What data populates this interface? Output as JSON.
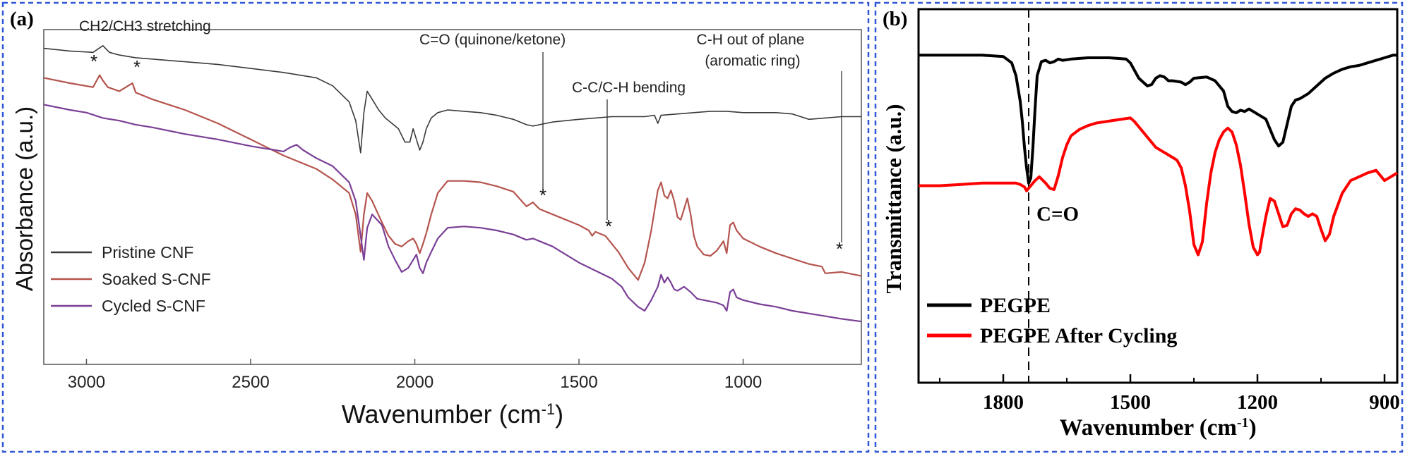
{
  "colors": {
    "frame_border": "#2f57d6",
    "pristine": "#3a3a3a",
    "soaked": "#b5544e",
    "cycled": "#7a3f96",
    "pegpe": "#000000",
    "pegpe_after": "#ff0000"
  },
  "panel_a": {
    "label": "(a)",
    "xlabel": "Wavenumber (cm",
    "xlabel_sup": "-1",
    "xlabel_close": ")",
    "ylabel": "Absorbance (a.u.)",
    "annotations": {
      "ch": "CH2/CH3 stretching",
      "co": "C=O (quinone/ketone)",
      "cc": "C-C/C-H bending",
      "cho_1": "C-H out of plane",
      "cho_2": "(aromatic ring)",
      "star": "*"
    }
  },
  "panel_b": {
    "label": "(b)",
    "xlabel": "Wavenumber (cm",
    "xlabel_sup": "-1",
    "xlabel_close": ")",
    "ylabel": "Transmittance (a.u.)",
    "annotations": {
      "co": "C=O"
    }
  },
  "chart_data": [
    {
      "type": "line",
      "panel": "a",
      "xlabel": "Wavenumber (cm-1)",
      "ylabel": "Absorbance (a.u.)",
      "xlim": [
        3130,
        640
      ],
      "x_reversed": true,
      "xticks": [
        3000,
        2500,
        2000,
        1500,
        1000
      ],
      "yticks_labeled": false,
      "legend_position": "bottom-left",
      "series": [
        {
          "name": "Pristine CNF",
          "x": [
            3130,
            3050,
            2980,
            2950,
            2930,
            2900,
            2850,
            2800,
            2700,
            2600,
            2500,
            2400,
            2300,
            2250,
            2200,
            2180,
            2165,
            2155,
            2145,
            2130,
            2110,
            2090,
            2070,
            2050,
            2030,
            2015,
            2005,
            1995,
            1985,
            1975,
            1965,
            1950,
            1930,
            1900,
            1850,
            1800,
            1750,
            1700,
            1660,
            1640,
            1620,
            1580,
            1540,
            1500,
            1450,
            1400,
            1350,
            1300,
            1270,
            1260,
            1250,
            1200,
            1150,
            1100,
            1050,
            1000,
            950,
            900,
            850,
            800,
            750,
            700,
            640
          ],
          "y": [
            9.2,
            9.1,
            9.05,
            9.3,
            9.05,
            8.95,
            8.85,
            8.8,
            8.7,
            8.6,
            8.45,
            8.3,
            8.1,
            7.8,
            7.2,
            6.5,
            5.3,
            6.8,
            7.6,
            7.3,
            6.9,
            6.6,
            6.4,
            6.2,
            5.7,
            5.7,
            6.2,
            5.8,
            5.4,
            5.7,
            6.2,
            6.6,
            6.8,
            6.9,
            6.85,
            6.8,
            6.7,
            6.55,
            6.35,
            6.3,
            6.35,
            6.45,
            6.5,
            6.55,
            6.6,
            6.65,
            6.65,
            6.65,
            6.7,
            6.4,
            6.7,
            6.75,
            6.8,
            6.85,
            6.85,
            6.8,
            6.8,
            6.8,
            6.75,
            6.55,
            6.6,
            6.65,
            6.65
          ]
        },
        {
          "name": "Soaked S-CNF",
          "x": [
            3130,
            3050,
            2980,
            2960,
            2950,
            2935,
            2900,
            2860,
            2850,
            2820,
            2800,
            2700,
            2600,
            2500,
            2400,
            2300,
            2250,
            2200,
            2180,
            2165,
            2155,
            2145,
            2130,
            2100,
            2080,
            2060,
            2040,
            2020,
            2005,
            1995,
            1985,
            1975,
            1965,
            1950,
            1930,
            1900,
            1850,
            1800,
            1750,
            1700,
            1660,
            1640,
            1620,
            1580,
            1540,
            1500,
            1470,
            1460,
            1450,
            1420,
            1380,
            1350,
            1320,
            1300,
            1280,
            1260,
            1250,
            1240,
            1230,
            1220,
            1210,
            1200,
            1190,
            1180,
            1170,
            1160,
            1150,
            1140,
            1120,
            1100,
            1080,
            1060,
            1050,
            1040,
            1030,
            1020,
            1000,
            950,
            900,
            850,
            800,
            760,
            750,
            700,
            640
          ],
          "y": [
            8.1,
            7.9,
            7.75,
            8.2,
            8.0,
            7.75,
            7.6,
            7.9,
            7.55,
            7.4,
            7.3,
            6.9,
            6.4,
            5.8,
            5.2,
            4.7,
            4.3,
            3.8,
            3.0,
            1.6,
            3.0,
            3.8,
            3.5,
            2.7,
            2.2,
            1.9,
            1.8,
            2.0,
            2.1,
            1.9,
            1.55,
            1.9,
            2.3,
            3.0,
            3.8,
            4.25,
            4.25,
            4.2,
            4.05,
            3.85,
            3.3,
            3.45,
            3.2,
            3.0,
            2.8,
            2.6,
            2.4,
            2.2,
            2.35,
            2.2,
            1.6,
            1.0,
            0.55,
            1.2,
            2.4,
            3.9,
            4.2,
            3.7,
            3.6,
            3.9,
            3.5,
            2.9,
            2.8,
            3.2,
            3.6,
            3.0,
            2.2,
            1.8,
            1.5,
            1.45,
            1.65,
            2.0,
            1.55,
            2.6,
            2.7,
            2.4,
            2.1,
            1.8,
            1.55,
            1.35,
            1.15,
            1.05,
            0.8,
            0.85,
            0.7
          ]
        },
        {
          "name": "Cycled S-CNF",
          "x": [
            3130,
            3050,
            3000,
            2950,
            2900,
            2850,
            2800,
            2700,
            2600,
            2500,
            2400,
            2380,
            2360,
            2340,
            2300,
            2250,
            2200,
            2180,
            2165,
            2155,
            2145,
            2130,
            2100,
            2080,
            2060,
            2040,
            2020,
            2005,
            1995,
            1985,
            1975,
            1965,
            1950,
            1930,
            1900,
            1850,
            1800,
            1750,
            1700,
            1660,
            1640,
            1620,
            1580,
            1540,
            1500,
            1450,
            1400,
            1370,
            1350,
            1320,
            1300,
            1280,
            1260,
            1250,
            1240,
            1230,
            1220,
            1210,
            1200,
            1180,
            1160,
            1140,
            1120,
            1100,
            1080,
            1060,
            1050,
            1040,
            1030,
            1020,
            1000,
            950,
            900,
            850,
            800,
            750,
            700,
            640
          ],
          "y": [
            7.1,
            6.9,
            6.8,
            6.6,
            6.5,
            6.35,
            6.25,
            6.0,
            5.8,
            5.55,
            5.35,
            5.5,
            5.6,
            5.4,
            5.1,
            4.8,
            4.2,
            3.5,
            2.2,
            1.3,
            2.5,
            3.0,
            2.6,
            1.8,
            1.3,
            0.85,
            1.0,
            1.3,
            1.5,
            1.0,
            0.8,
            1.2,
            1.6,
            2.1,
            2.5,
            2.55,
            2.5,
            2.4,
            2.25,
            2.05,
            2.1,
            2.0,
            1.8,
            1.5,
            1.2,
            0.9,
            0.6,
            0.3,
            -0.1,
            -0.45,
            -0.6,
            -0.2,
            0.3,
            0.75,
            0.45,
            0.65,
            0.45,
            0.2,
            0.15,
            0.3,
            0.1,
            -0.15,
            -0.2,
            -0.25,
            -0.3,
            -0.4,
            -0.6,
            0.1,
            0.2,
            -0.1,
            -0.2,
            -0.35,
            -0.45,
            -0.6,
            -0.7,
            -0.8,
            -0.9,
            -1.0
          ]
        }
      ]
    },
    {
      "type": "line",
      "panel": "b",
      "xlabel": "Wavenumber (cm-1)",
      "ylabel": "Transmittance (a.u.)",
      "xlim": [
        2000,
        870
      ],
      "x_reversed": true,
      "xticks": [
        1800,
        1500,
        1200,
        900
      ],
      "yticks_labeled": false,
      "legend_position": "bottom-left",
      "marker_line_at": 1740,
      "series": [
        {
          "name": "PEGPE",
          "x": [
            2000,
            1950,
            1900,
            1850,
            1800,
            1780,
            1770,
            1760,
            1755,
            1750,
            1745,
            1740,
            1735,
            1730,
            1725,
            1720,
            1710,
            1700,
            1690,
            1680,
            1670,
            1660,
            1640,
            1600,
            1550,
            1510,
            1500,
            1480,
            1460,
            1450,
            1440,
            1430,
            1420,
            1410,
            1400,
            1380,
            1370,
            1360,
            1350,
            1320,
            1300,
            1280,
            1270,
            1260,
            1250,
            1240,
            1230,
            1220,
            1210,
            1200,
            1180,
            1170,
            1160,
            1150,
            1140,
            1130,
            1120,
            1110,
            1100,
            1080,
            1060,
            1040,
            1020,
            1000,
            980,
            960,
            940,
            920,
            900,
            880,
            870
          ],
          "y": [
            9.6,
            9.6,
            9.6,
            9.6,
            9.55,
            9.3,
            8.8,
            7.8,
            7.0,
            6.0,
            5.2,
            4.6,
            4.8,
            6.0,
            7.5,
            8.8,
            9.35,
            9.4,
            9.3,
            9.35,
            9.45,
            9.4,
            9.45,
            9.5,
            9.5,
            9.45,
            9.3,
            8.7,
            8.4,
            8.45,
            8.7,
            8.8,
            8.75,
            8.6,
            8.6,
            8.55,
            8.45,
            8.55,
            8.7,
            8.75,
            8.6,
            8.2,
            7.6,
            7.4,
            7.35,
            7.45,
            7.4,
            7.5,
            7.4,
            7.3,
            7.1,
            6.7,
            6.3,
            6.05,
            6.2,
            6.9,
            7.6,
            7.85,
            7.9,
            8.1,
            8.4,
            8.7,
            8.9,
            9.05,
            9.15,
            9.2,
            9.3,
            9.4,
            9.5,
            9.6,
            9.6
          ]
        },
        {
          "name": "PEGPE After Cycling",
          "x": [
            2000,
            1950,
            1900,
            1850,
            1800,
            1770,
            1760,
            1750,
            1745,
            1740,
            1735,
            1725,
            1715,
            1700,
            1690,
            1680,
            1670,
            1660,
            1650,
            1640,
            1620,
            1600,
            1580,
            1560,
            1540,
            1520,
            1500,
            1490,
            1480,
            1470,
            1460,
            1450,
            1440,
            1430,
            1420,
            1410,
            1400,
            1390,
            1380,
            1370,
            1360,
            1350,
            1340,
            1330,
            1320,
            1310,
            1300,
            1290,
            1280,
            1270,
            1260,
            1250,
            1240,
            1230,
            1220,
            1210,
            1200,
            1195,
            1190,
            1180,
            1170,
            1160,
            1150,
            1140,
            1130,
            1120,
            1110,
            1100,
            1090,
            1080,
            1070,
            1060,
            1050,
            1040,
            1030,
            1020,
            1000,
            980,
            960,
            940,
            920,
            900,
            880,
            870
          ],
          "y": [
            4.5,
            4.5,
            4.55,
            4.6,
            4.6,
            4.6,
            4.55,
            4.45,
            4.3,
            4.4,
            4.5,
            4.7,
            4.85,
            4.6,
            4.4,
            4.35,
            4.9,
            5.6,
            6.1,
            6.45,
            6.7,
            6.85,
            6.95,
            7.0,
            7.05,
            7.1,
            7.15,
            7.0,
            6.8,
            6.6,
            6.4,
            6.2,
            6.0,
            5.9,
            5.8,
            5.7,
            5.6,
            5.5,
            5.2,
            4.5,
            3.5,
            2.2,
            1.8,
            2.3,
            3.8,
            5.0,
            5.8,
            6.3,
            6.6,
            6.75,
            6.6,
            6.1,
            5.3,
            4.2,
            3.0,
            2.1,
            1.8,
            1.9,
            2.4,
            3.3,
            4.0,
            3.9,
            3.4,
            2.9,
            2.95,
            3.4,
            3.6,
            3.55,
            3.4,
            3.3,
            3.4,
            3.3,
            2.8,
            2.35,
            2.6,
            3.3,
            4.2,
            4.7,
            4.85,
            5.0,
            5.1,
            4.7,
            4.9,
            5.0
          ]
        }
      ]
    }
  ]
}
